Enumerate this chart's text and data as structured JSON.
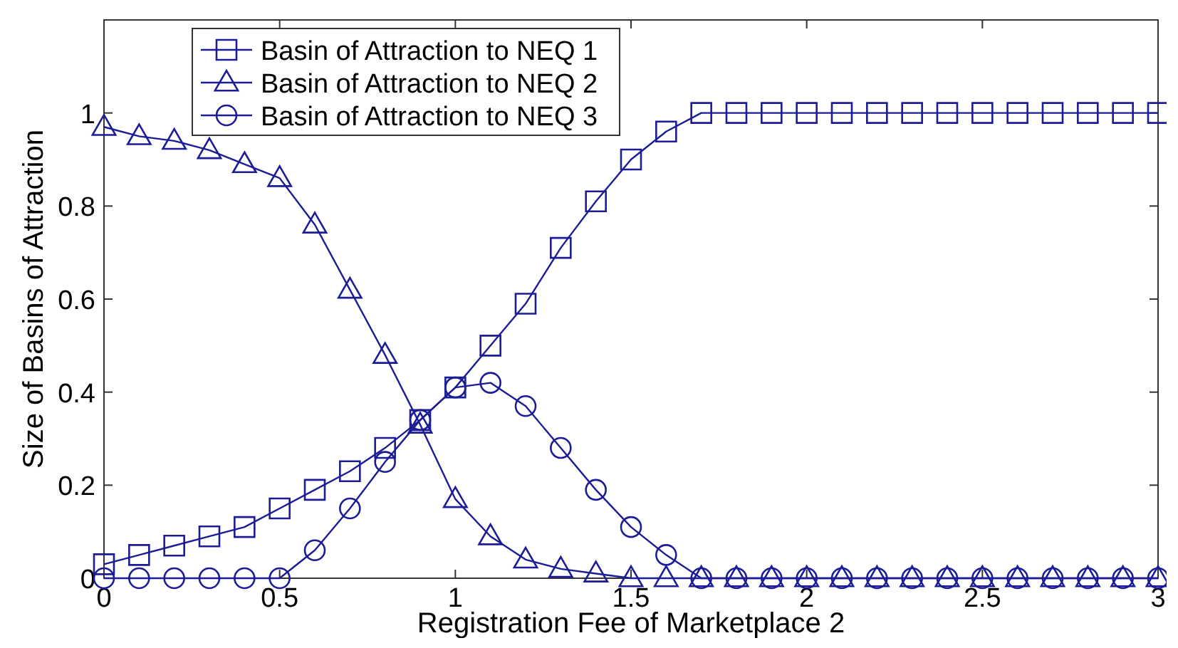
{
  "chart_data": {
    "type": "line",
    "xlabel": "Registration Fee of Marketplace 2",
    "ylabel": "Size of Basins of Attraction",
    "x": [
      0,
      0.1,
      0.2,
      0.3,
      0.4,
      0.5,
      0.6,
      0.7,
      0.8,
      0.9,
      1,
      1.1,
      1.2,
      1.3,
      1.4,
      1.5,
      1.6,
      1.7,
      1.8,
      1.9,
      2,
      2.1,
      2.2,
      2.3,
      2.4,
      2.5,
      2.6,
      2.7,
      2.8,
      2.9,
      3
    ],
    "series": [
      {
        "name": "Basin of Attraction to NEQ 1",
        "color": "#1c1c96",
        "marker": "square",
        "values": [
          0.03,
          0.05,
          0.07,
          0.09,
          0.11,
          0.15,
          0.19,
          0.23,
          0.28,
          0.34,
          0.41,
          0.5,
          0.59,
          0.71,
          0.81,
          0.9,
          0.96,
          1,
          1,
          1,
          1,
          1,
          1,
          1,
          1,
          1,
          1,
          1,
          1,
          1,
          1
        ]
      },
      {
        "name": "Basin of Attraction to NEQ 2",
        "color": "#1c1c96",
        "marker": "triangle",
        "values": [
          0.97,
          0.95,
          0.94,
          0.92,
          0.89,
          0.86,
          0.76,
          0.62,
          0.48,
          0.33,
          0.17,
          0.09,
          0.04,
          0.02,
          0.01,
          0,
          0,
          0,
          0,
          0,
          0,
          0,
          0,
          0,
          0,
          0,
          0,
          0,
          0,
          0,
          0
        ]
      },
      {
        "name": "Basin of Attraction to NEQ 3",
        "color": "#1c1c96",
        "marker": "circle",
        "values": [
          0,
          0,
          0,
          0,
          0,
          0,
          0.06,
          0.15,
          0.25,
          0.34,
          0.41,
          0.42,
          0.37,
          0.28,
          0.19,
          0.11,
          0.05,
          0,
          0,
          0,
          0,
          0,
          0,
          0,
          0,
          0,
          0,
          0,
          0,
          0,
          0
        ]
      }
    ],
    "xlim": [
      0,
      3
    ],
    "xticks": [
      0,
      0.5,
      1,
      1.5,
      2,
      2.5,
      3
    ],
    "ylim": [
      0,
      1.2
    ],
    "yticks": [
      0,
      0.2,
      0.4,
      0.6,
      0.8,
      1
    ],
    "grid": false,
    "legend": "top left",
    "line_style": "solid"
  }
}
